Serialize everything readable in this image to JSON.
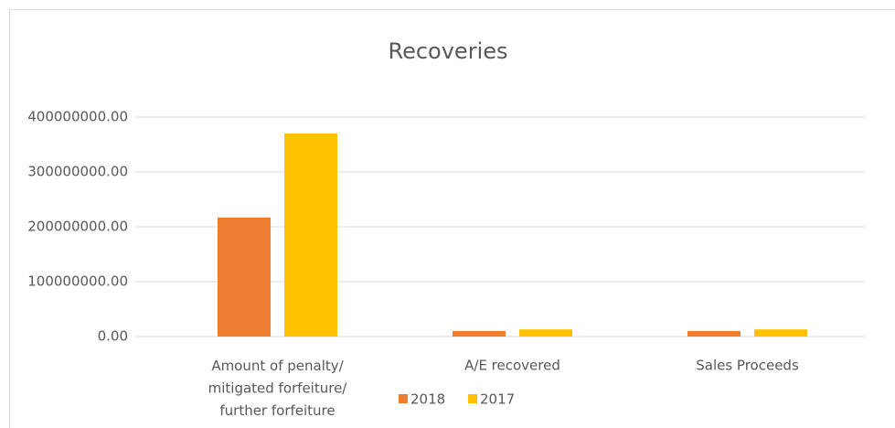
{
  "chart_data": {
    "type": "bar",
    "title": "Recoveries",
    "categories": [
      "Amount of penalty/ mitigated forfeiture/ further forfeiture",
      "A/E recovered",
      "Sales Proceeds"
    ],
    "series": [
      {
        "name": "2018",
        "color": "#ed7d31",
        "values": [
          217000000,
          10000000,
          10000000
        ]
      },
      {
        "name": "2017",
        "color": "#ffc000",
        "values": [
          370000000,
          13000000,
          13000000
        ]
      }
    ],
    "ylim": [
      0,
      400000000
    ],
    "yticks": [
      {
        "value": 0,
        "label": "0.00"
      },
      {
        "value": 100000000,
        "label": "100000000.00"
      },
      {
        "value": 200000000,
        "label": "200000000.00"
      },
      {
        "value": 300000000,
        "label": "300000000.00"
      },
      {
        "value": 400000000,
        "label": "400000000.00"
      }
    ],
    "grid": true,
    "legend": "bottom"
  }
}
